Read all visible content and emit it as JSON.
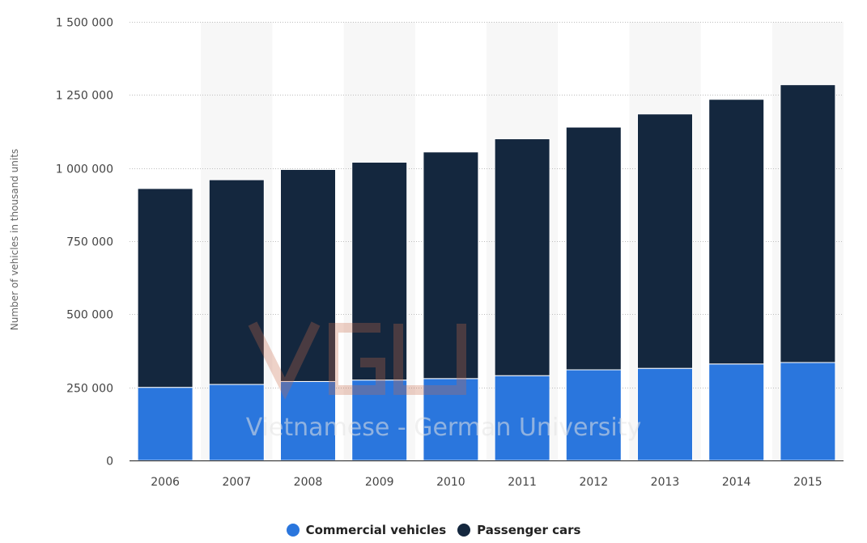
{
  "chart_data": {
    "type": "bar",
    "stacked": true,
    "categories": [
      "2006",
      "2007",
      "2008",
      "2009",
      "2010",
      "2011",
      "2012",
      "2013",
      "2014",
      "2015"
    ],
    "series": [
      {
        "name": "Commercial vehicles",
        "color": "#2a76dd",
        "values": [
          250000,
          260000,
          270000,
          275000,
          280000,
          290000,
          310000,
          315000,
          330000,
          335000
        ]
      },
      {
        "name": "Passenger cars",
        "color": "#14273e",
        "values": [
          680000,
          700000,
          725000,
          745000,
          775000,
          810000,
          830000,
          870000,
          905000,
          950000
        ]
      }
    ],
    "ylabel": "Number of vehicles in thousand units",
    "xlabel": "",
    "ylim": [
      0,
      1500000
    ],
    "yticks": [
      0,
      250000,
      500000,
      750000,
      1000000,
      1250000,
      1500000
    ],
    "ytick_labels": [
      "0",
      "250 000",
      "500 000",
      "750 000",
      "1 000 000",
      "1 250 000",
      "1 500 000"
    ],
    "grid": true,
    "legend_position": "bottom-center"
  },
  "watermark": {
    "logo_text": "VGU",
    "caption": "Vietnamese - German University"
  }
}
